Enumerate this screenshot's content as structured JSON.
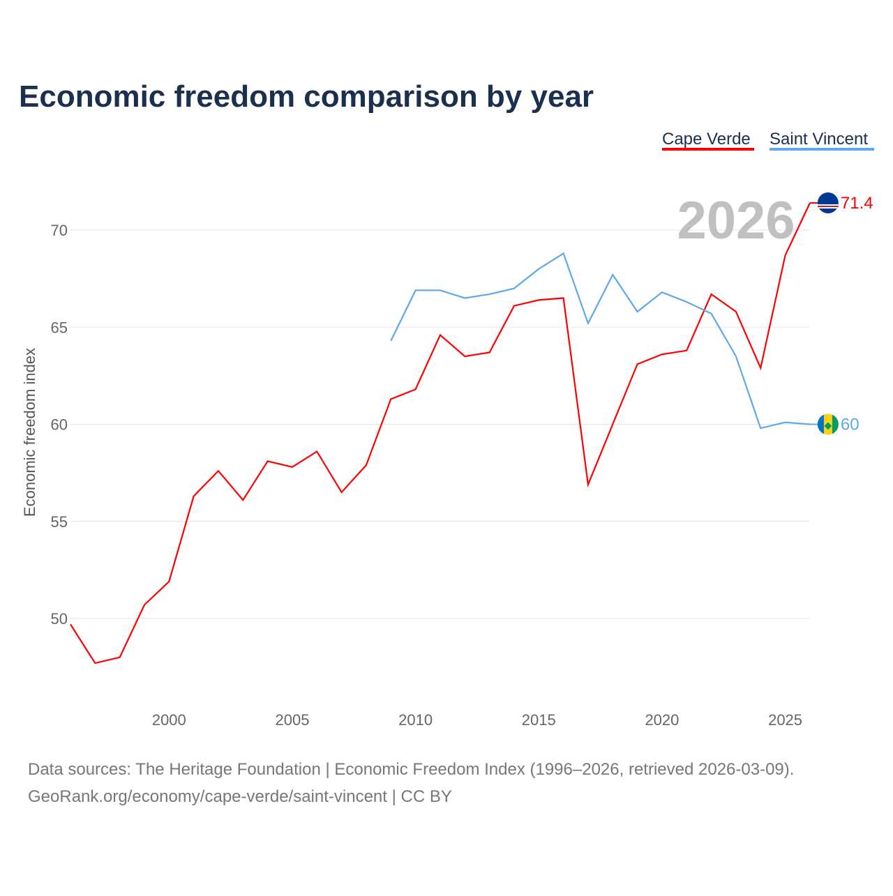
{
  "chart_data": {
    "type": "line",
    "title": "Economic freedom comparison by year",
    "xlabel": "",
    "ylabel": "Economic freedom index",
    "xlim": [
      1996,
      2026
    ],
    "ylim": [
      45.5,
      72
    ],
    "x_ticks": [
      2000,
      2005,
      2010,
      2015,
      2020,
      2025
    ],
    "y_ticks": [
      50,
      55,
      60,
      65,
      70
    ],
    "grid": "horizontal",
    "legend_position": "top-right",
    "year_label": "2026",
    "series": [
      {
        "name": "Cape Verde",
        "color": "#ff0000",
        "end_label": "71.4",
        "x": [
          1996,
          1997,
          1998,
          1999,
          2000,
          2001,
          2002,
          2003,
          2004,
          2005,
          2006,
          2007,
          2008,
          2009,
          2010,
          2011,
          2012,
          2013,
          2014,
          2015,
          2016,
          2017,
          2018,
          2019,
          2020,
          2021,
          2022,
          2023,
          2024,
          2025,
          2026
        ],
        "values": [
          49.7,
          47.7,
          48.0,
          50.7,
          51.9,
          56.3,
          57.6,
          56.1,
          58.1,
          57.8,
          58.6,
          56.5,
          57.9,
          61.3,
          61.8,
          64.6,
          63.5,
          63.7,
          66.1,
          66.4,
          66.5,
          56.9,
          60.0,
          63.1,
          63.6,
          63.8,
          66.7,
          65.8,
          62.9,
          68.7,
          71.4
        ]
      },
      {
        "name": "Saint Vincent",
        "color": "#5da8ec",
        "end_label": "60",
        "x": [
          2009,
          2010,
          2011,
          2012,
          2013,
          2014,
          2015,
          2016,
          2017,
          2018,
          2019,
          2020,
          2021,
          2022,
          2023,
          2024,
          2025,
          2026
        ],
        "values": [
          64.3,
          66.9,
          66.9,
          66.5,
          66.7,
          67.0,
          68.0,
          68.8,
          65.2,
          67.7,
          65.8,
          66.8,
          66.3,
          65.7,
          63.5,
          59.8,
          60.1,
          60.0
        ]
      }
    ]
  },
  "footer": {
    "line1": "Data sources: The Heritage Foundation | Economic Freedom Index (1996–2026, retrieved 2026-03-09).",
    "line2": "GeoRank.org/economy/cape-verde/saint-vincent | CC BY"
  }
}
